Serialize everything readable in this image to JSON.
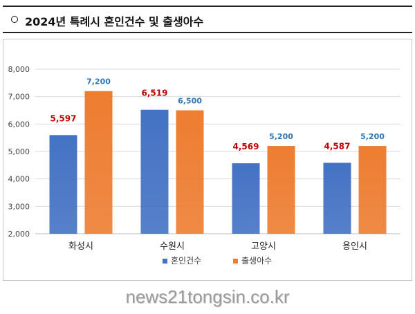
{
  "title": "2024년 특례시 혼인건수 및 출생아수",
  "chart_data": {
    "type": "bar",
    "categories": [
      "화성시",
      "수원시",
      "고양시",
      "용인시"
    ],
    "series": [
      {
        "name": "혼인건수",
        "values": [
          5597,
          6519,
          4569,
          4587
        ],
        "labels": [
          "5,597",
          "6,519",
          "4,569",
          "4,587"
        ],
        "color": "#4472C4",
        "label_color": "#C00000"
      },
      {
        "name": "출생아수",
        "values": [
          7200,
          6500,
          5200,
          5200
        ],
        "labels": [
          "7,200",
          "6,500",
          "5,200",
          "5,200"
        ],
        "color": "#ED7D31",
        "label_color": "#2E75B6"
      }
    ],
    "ylim": [
      2000,
      8000
    ],
    "yticks": [
      "2,000",
      "3,000",
      "4,000",
      "5,000",
      "6,000",
      "7,000",
      "8,000"
    ],
    "grid": true,
    "legend_position": "bottom"
  },
  "watermark": "news21tongsin.co.kr"
}
